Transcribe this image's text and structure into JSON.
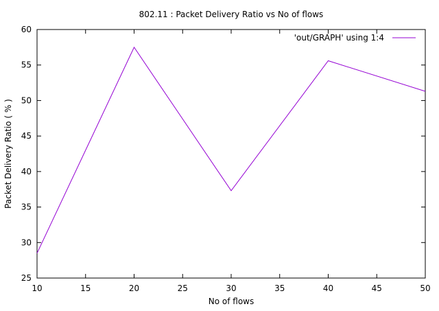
{
  "chart_data": {
    "type": "line",
    "title": "802.11 : Packet Delivery Ratio vs No of flows",
    "xlabel": "No of flows",
    "ylabel": "Packet Delivery Ratio ( % )",
    "xlim": [
      10,
      50
    ],
    "ylim": [
      25,
      60
    ],
    "xticks": [
      10,
      15,
      20,
      25,
      30,
      35,
      40,
      45,
      50
    ],
    "yticks": [
      25,
      30,
      35,
      40,
      45,
      50,
      55,
      60
    ],
    "grid": false,
    "legend_position": "top-right",
    "series": [
      {
        "name": "'out/GRAPH' using 1:4",
        "color": "#9400d3",
        "x": [
          10,
          20,
          30,
          40,
          50
        ],
        "y": [
          28.5,
          57.5,
          37.3,
          55.6,
          51.3
        ]
      }
    ]
  }
}
